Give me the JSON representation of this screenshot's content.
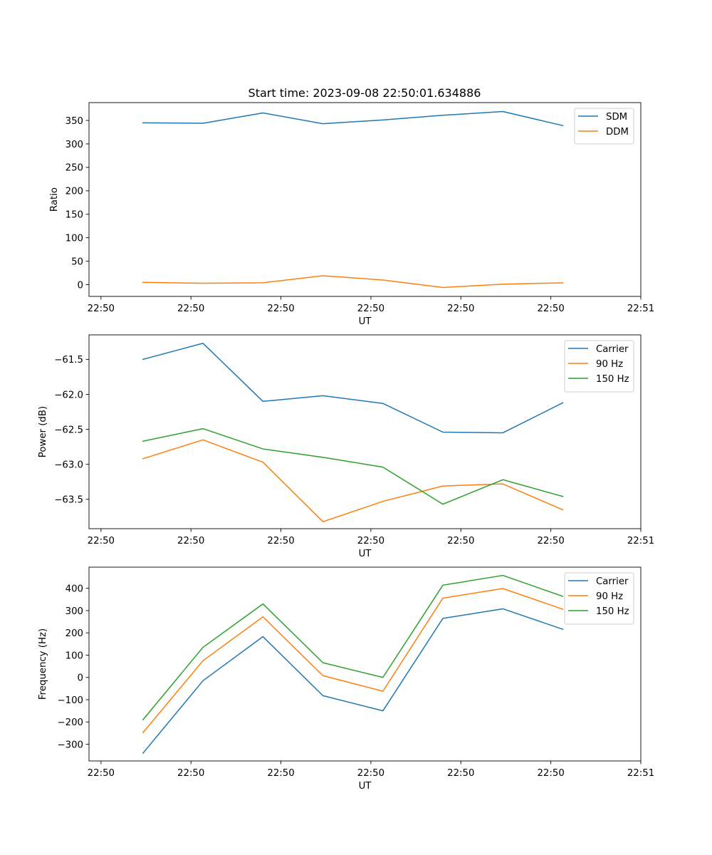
{
  "figure_title": "Start time: 2023-09-08 22:50:01.634886",
  "chart_data": [
    {
      "type": "line",
      "title": "Start time: 2023-09-08 22:50:01.634886",
      "xlabel": "UT",
      "ylabel": "Ratio",
      "x_tick_labels": [
        "22:50",
        "22:50",
        "22:50",
        "22:50",
        "22:50",
        "22:50",
        "22:51"
      ],
      "x": [
        1,
        2,
        3,
        4,
        5,
        6,
        7,
        8
      ],
      "xlim": [
        0.1,
        9.3
      ],
      "ylim": [
        -25,
        388
      ],
      "y_ticks": [
        0,
        50,
        100,
        150,
        200,
        250,
        300,
        350
      ],
      "legend_position": "top-right",
      "series": [
        {
          "name": "SDM",
          "color": "#1f77b4",
          "values": [
            345,
            344,
            366,
            343,
            351,
            361,
            369,
            339
          ]
        },
        {
          "name": "DDM",
          "color": "#ff7f0e",
          "values": [
            5,
            3,
            4,
            19,
            10,
            -6,
            1,
            4
          ]
        }
      ]
    },
    {
      "type": "line",
      "xlabel": "UT",
      "ylabel": "Power (dB)",
      "x_tick_labels": [
        "22:50",
        "22:50",
        "22:50",
        "22:50",
        "22:50",
        "22:50",
        "22:51"
      ],
      "x": [
        1,
        2,
        3,
        4,
        5,
        6,
        7,
        8
      ],
      "xlim": [
        0.1,
        9.3
      ],
      "ylim": [
        -63.92,
        -61.15
      ],
      "y_ticks": [
        -61.5,
        -62.0,
        -62.5,
        -63.0,
        -63.5
      ],
      "y_tick_labels": [
        "−61.5",
        "−62.0",
        "−62.5",
        "−63.0",
        "−63.5"
      ],
      "legend_position": "top-right",
      "series": [
        {
          "name": "Carrier",
          "color": "#1f77b4",
          "values": [
            -61.5,
            -61.27,
            -62.1,
            -62.02,
            -62.13,
            -62.54,
            -62.55,
            -62.12
          ]
        },
        {
          "name": "90 Hz",
          "color": "#ff7f0e",
          "values": [
            -62.92,
            -62.65,
            -62.97,
            -63.82,
            -63.53,
            -63.31,
            -63.28,
            -63.65
          ]
        },
        {
          "name": "150 Hz",
          "color": "#2ca02c",
          "values": [
            -62.67,
            -62.49,
            -62.78,
            -62.9,
            -63.04,
            -63.57,
            -63.22,
            -63.46
          ]
        }
      ]
    },
    {
      "type": "line",
      "xlabel": "UT",
      "ylabel": "Frequency (Hz)",
      "x_tick_labels": [
        "22:50",
        "22:50",
        "22:50",
        "22:50",
        "22:50",
        "22:50",
        "22:51"
      ],
      "x": [
        1,
        2,
        3,
        4,
        5,
        6,
        7,
        8
      ],
      "xlim": [
        0.1,
        9.3
      ],
      "ylim": [
        -375,
        495
      ],
      "y_ticks": [
        -300,
        -200,
        -100,
        0,
        100,
        200,
        300,
        400
      ],
      "y_tick_labels": [
        "−300",
        "−200",
        "−100",
        "0",
        "100",
        "200",
        "300",
        "400"
      ],
      "legend_position": "top-right",
      "series": [
        {
          "name": "Carrier",
          "color": "#1f77b4",
          "values": [
            -340,
            -15,
            183,
            -82,
            -150,
            265,
            308,
            216
          ]
        },
        {
          "name": "90 Hz",
          "color": "#ff7f0e",
          "values": [
            -248,
            75,
            272,
            8,
            -62,
            356,
            399,
            306
          ]
        },
        {
          "name": "150 Hz",
          "color": "#2ca02c",
          "values": [
            -190,
            135,
            330,
            66,
            0,
            414,
            458,
            364
          ]
        }
      ]
    }
  ]
}
